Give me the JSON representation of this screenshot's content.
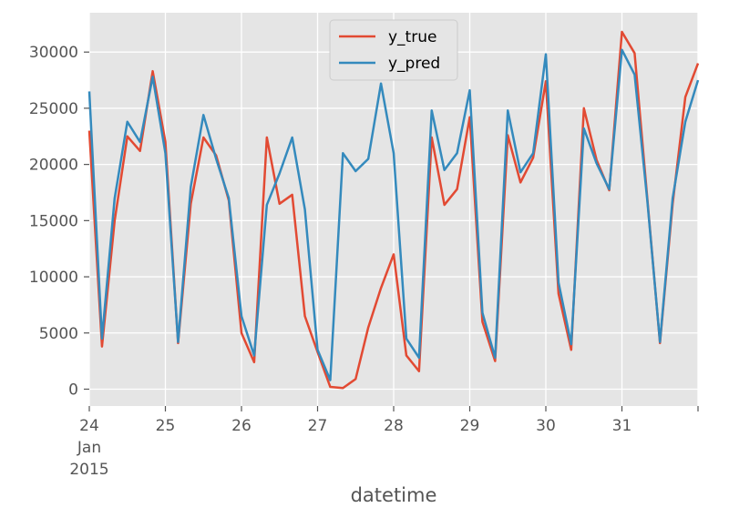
{
  "chart_data": {
    "type": "line",
    "title": "",
    "xlabel": "datetime",
    "ylabel": "",
    "x_unit": "date (hourly-ish samples, 6 per day)",
    "xlim": [
      "2015-01-24",
      "2015-02-01"
    ],
    "ylim": [
      -1500,
      33500
    ],
    "grid": true,
    "legend_position": "top-center",
    "x_ticks": [
      {
        "date": "2015-01-24",
        "labels": [
          "24",
          "Jan",
          "2015"
        ]
      },
      {
        "date": "2015-01-25",
        "labels": [
          "25"
        ]
      },
      {
        "date": "2015-01-26",
        "labels": [
          "26"
        ]
      },
      {
        "date": "2015-01-27",
        "labels": [
          "27"
        ]
      },
      {
        "date": "2015-01-28",
        "labels": [
          "28"
        ]
      },
      {
        "date": "2015-01-29",
        "labels": [
          "29"
        ]
      },
      {
        "date": "2015-01-30",
        "labels": [
          "30"
        ]
      },
      {
        "date": "2015-01-31",
        "labels": [
          "31"
        ]
      },
      {
        "date": "2015-02-01",
        "labels": [
          ""
        ]
      }
    ],
    "y_ticks": [
      0,
      5000,
      10000,
      15000,
      20000,
      25000,
      30000
    ],
    "y_tick_labels": [
      "0",
      "5000",
      "10000",
      "15000",
      "20000",
      "25000",
      "30000"
    ],
    "series": [
      {
        "name": "y_true",
        "color": "#E24A33",
        "x": [
          "2015-01-24T00:00",
          "2015-01-24T04:00",
          "2015-01-24T08:00",
          "2015-01-24T12:00",
          "2015-01-24T16:00",
          "2015-01-24T20:00",
          "2015-01-25T00:00",
          "2015-01-25T04:00",
          "2015-01-25T08:00",
          "2015-01-25T12:00",
          "2015-01-25T16:00",
          "2015-01-25T20:00",
          "2015-01-26T00:00",
          "2015-01-26T04:00",
          "2015-01-26T08:00",
          "2015-01-26T12:00",
          "2015-01-26T16:00",
          "2015-01-26T20:00",
          "2015-01-27T00:00",
          "2015-01-27T04:00",
          "2015-01-27T08:00",
          "2015-01-27T12:00",
          "2015-01-27T16:00",
          "2015-01-27T20:00",
          "2015-01-28T00:00",
          "2015-01-28T04:00",
          "2015-01-28T08:00",
          "2015-01-28T12:00",
          "2015-01-28T16:00",
          "2015-01-28T20:00",
          "2015-01-29T00:00",
          "2015-01-29T04:00",
          "2015-01-29T08:00",
          "2015-01-29T12:00",
          "2015-01-29T16:00",
          "2015-01-29T20:00",
          "2015-01-30T00:00",
          "2015-01-30T04:00",
          "2015-01-30T08:00",
          "2015-01-30T12:00",
          "2015-01-30T16:00",
          "2015-01-30T20:00",
          "2015-01-31T00:00",
          "2015-01-31T04:00",
          "2015-01-31T08:00",
          "2015-01-31T12:00",
          "2015-01-31T16:00",
          "2015-01-31T20:00",
          "2015-02-01T00:00"
        ],
        "values": [
          23000,
          3800,
          15000,
          22500,
          21200,
          28300,
          22000,
          4100,
          16500,
          22400,
          20800,
          16800,
          5000,
          2400,
          22400,
          16500,
          17300,
          6500,
          3300,
          200,
          100,
          900,
          5500,
          9000,
          12000,
          3000,
          1600,
          22400,
          16400,
          17800,
          24200,
          6000,
          2500,
          22600,
          18400,
          20600,
          27400,
          8500,
          3500,
          25000,
          20400,
          17700,
          31800,
          29900,
          17000,
          4100,
          16500,
          26000,
          29000
        ]
      },
      {
        "name": "y_pred",
        "color": "#348ABD",
        "x": [
          "2015-01-24T00:00",
          "2015-01-24T04:00",
          "2015-01-24T08:00",
          "2015-01-24T12:00",
          "2015-01-24T16:00",
          "2015-01-24T20:00",
          "2015-01-25T00:00",
          "2015-01-25T04:00",
          "2015-01-25T08:00",
          "2015-01-25T12:00",
          "2015-01-25T16:00",
          "2015-01-25T20:00",
          "2015-01-26T00:00",
          "2015-01-26T04:00",
          "2015-01-26T08:00",
          "2015-01-26T12:00",
          "2015-01-26T16:00",
          "2015-01-26T20:00",
          "2015-01-27T00:00",
          "2015-01-27T04:00",
          "2015-01-27T08:00",
          "2015-01-27T12:00",
          "2015-01-27T16:00",
          "2015-01-27T20:00",
          "2015-01-28T00:00",
          "2015-01-28T04:00",
          "2015-01-28T08:00",
          "2015-01-28T12:00",
          "2015-01-28T16:00",
          "2015-01-28T20:00",
          "2015-01-29T00:00",
          "2015-01-29T04:00",
          "2015-01-29T08:00",
          "2015-01-29T12:00",
          "2015-01-29T16:00",
          "2015-01-29T20:00",
          "2015-01-30T00:00",
          "2015-01-30T04:00",
          "2015-01-30T08:00",
          "2015-01-30T12:00",
          "2015-01-30T16:00",
          "2015-01-30T20:00",
          "2015-01-31T00:00",
          "2015-01-31T04:00",
          "2015-01-31T08:00",
          "2015-01-31T12:00",
          "2015-01-31T16:00",
          "2015-01-31T20:00",
          "2015-02-01T00:00"
        ],
        "values": [
          26500,
          4500,
          17000,
          23800,
          22000,
          27800,
          21000,
          4200,
          18000,
          24400,
          20500,
          17000,
          6500,
          3000,
          16400,
          19200,
          22400,
          16000,
          3500,
          800,
          21000,
          19400,
          20500,
          27200,
          21000,
          4500,
          2800,
          24800,
          19500,
          21000,
          26600,
          6800,
          2800,
          24800,
          19300,
          21000,
          29800,
          9500,
          4000,
          23200,
          20100,
          17800,
          30200,
          28000,
          16800,
          4200,
          17000,
          23800,
          27500
        ]
      }
    ]
  }
}
